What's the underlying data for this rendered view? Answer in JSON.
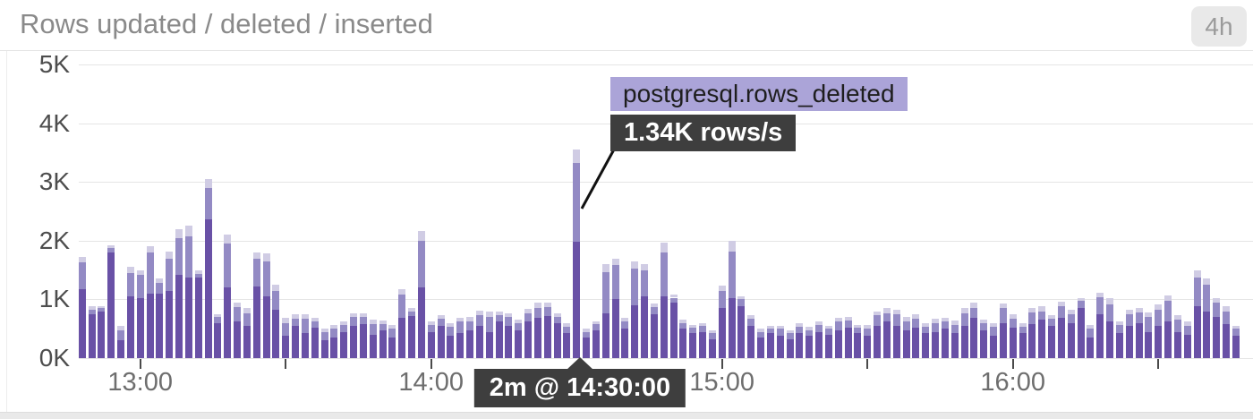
{
  "header": {
    "title": "Rows updated / deleted / inserted",
    "time_range_label": "4h"
  },
  "tooltip": {
    "metric": "postgresql.rows_deleted",
    "value": "1.34K rows/s"
  },
  "time_marker": {
    "label": "2m @ 14:30:00"
  },
  "colors": {
    "bar_updated": "#6951a6",
    "bar_deleted": "#938ac4",
    "bar_inserted": "#d0cce4",
    "tooltip_metric_bg": "#aba4d8",
    "tooltip_value_bg": "#3e3e3e",
    "grid": "#e5e5e5",
    "title_text": "#8a8a8a",
    "axis_text": "#4d4d4d"
  },
  "chart_data": {
    "type": "bar",
    "stacked": true,
    "title": "Rows updated / deleted / inserted",
    "units": "K rows/s",
    "ylim": [
      0,
      5
    ],
    "y_ticks": [
      {
        "value": 0,
        "label": "0K"
      },
      {
        "value": 1,
        "label": "1K"
      },
      {
        "value": 2,
        "label": "2K"
      },
      {
        "value": 3,
        "label": "3K"
      },
      {
        "value": 4,
        "label": "4K"
      },
      {
        "value": 5,
        "label": "5K"
      }
    ],
    "x_ticks": [
      {
        "minutes_from_13": 0,
        "label": "13:00"
      },
      {
        "minutes_from_13": 30,
        "label": ""
      },
      {
        "minutes_from_13": 60,
        "label": "14:00"
      },
      {
        "minutes_from_13": 120,
        "label": "15:00"
      },
      {
        "minutes_from_13": 150,
        "label": ""
      },
      {
        "minutes_from_13": 180,
        "label": "16:00"
      },
      {
        "minutes_from_13": 210,
        "label": ""
      }
    ],
    "interval": "2m",
    "start_time": "12:48",
    "end_time": "16:46",
    "hovered_point": {
      "index": 51,
      "time": "14:30:00",
      "series": "deleted",
      "value_label": "1.34K rows/s"
    },
    "series": [
      {
        "name": "updated",
        "values": [
          1.18,
          0.75,
          0.8,
          1.8,
          0.3,
          1.05,
          1.02,
          1.1,
          1.1,
          1.15,
          1.42,
          1.37,
          1.37,
          2.37,
          0.6,
          1.2,
          0.62,
          0.55,
          1.22,
          1.05,
          0.82,
          0.38,
          0.55,
          0.42,
          0.52,
          0.3,
          0.35,
          0.45,
          0.55,
          0.58,
          0.4,
          0.48,
          0.35,
          0.68,
          0.72,
          1.2,
          0.45,
          0.55,
          0.38,
          0.42,
          0.48,
          0.55,
          0.45,
          0.62,
          0.55,
          0.48,
          0.62,
          0.68,
          0.72,
          0.6,
          0.42,
          1.98,
          0.35,
          0.48,
          0.76,
          1.0,
          0.5,
          0.9,
          1.05,
          0.75,
          1.05,
          0.95,
          0.5,
          0.42,
          0.45,
          0.32,
          0.85,
          1.02,
          0.88,
          0.55,
          0.35,
          0.42,
          0.38,
          0.32,
          0.42,
          0.38,
          0.45,
          0.4,
          0.48,
          0.52,
          0.42,
          0.38,
          0.55,
          0.62,
          0.55,
          0.48,
          0.52,
          0.42,
          0.45,
          0.5,
          0.42,
          0.55,
          0.68,
          0.48,
          0.38,
          0.6,
          0.52,
          0.42,
          0.58,
          0.65,
          0.55,
          0.68,
          0.6,
          0.85,
          0.35,
          0.75,
          0.62,
          0.42,
          0.55,
          0.6,
          0.45,
          0.55,
          0.62,
          0.45,
          0.4,
          0.88,
          0.8,
          0.7,
          0.58,
          0.38
        ]
      },
      {
        "name": "deleted",
        "values": [
          0.45,
          0.08,
          0.05,
          0.07,
          0.18,
          0.4,
          0.4,
          0.7,
          0.18,
          0.55,
          0.63,
          0.7,
          0.07,
          0.53,
          0.1,
          0.75,
          0.25,
          0.22,
          0.48,
          0.6,
          0.33,
          0.22,
          0.12,
          0.25,
          0.1,
          0.15,
          0.15,
          0.12,
          0.15,
          0.12,
          0.18,
          0.1,
          0.15,
          0.4,
          0.08,
          0.8,
          0.12,
          0.12,
          0.15,
          0.2,
          0.15,
          0.18,
          0.25,
          0.12,
          0.15,
          0.12,
          0.15,
          0.18,
          0.15,
          0.1,
          0.12,
          1.34,
          0.1,
          0.1,
          0.7,
          0.58,
          0.12,
          0.62,
          0.45,
          0.12,
          0.75,
          0.08,
          0.1,
          0.1,
          0.1,
          0.1,
          0.3,
          0.8,
          0.12,
          0.12,
          0.1,
          0.08,
          0.12,
          0.1,
          0.12,
          0.1,
          0.12,
          0.1,
          0.15,
          0.12,
          0.1,
          0.12,
          0.18,
          0.15,
          0.2,
          0.15,
          0.15,
          0.12,
          0.15,
          0.12,
          0.15,
          0.22,
          0.18,
          0.12,
          0.15,
          0.25,
          0.15,
          0.12,
          0.2,
          0.15,
          0.12,
          0.2,
          0.15,
          0.12,
          0.15,
          0.28,
          0.3,
          0.15,
          0.2,
          0.18,
          0.25,
          0.28,
          0.35,
          0.2,
          0.15,
          0.5,
          0.45,
          0.25,
          0.22,
          0.12
        ]
      },
      {
        "name": "inserted",
        "values": [
          0.1,
          0.05,
          0.03,
          0.05,
          0.07,
          0.1,
          0.08,
          0.1,
          0.07,
          0.12,
          0.15,
          0.18,
          0.05,
          0.15,
          0.05,
          0.15,
          0.08,
          0.08,
          0.1,
          0.13,
          0.1,
          0.08,
          0.08,
          0.08,
          0.06,
          0.06,
          0.06,
          0.06,
          0.07,
          0.07,
          0.07,
          0.06,
          0.06,
          0.1,
          0.05,
          0.17,
          0.06,
          0.06,
          0.06,
          0.07,
          0.07,
          0.08,
          0.09,
          0.06,
          0.07,
          0.06,
          0.07,
          0.08,
          0.08,
          0.06,
          0.06,
          0.23,
          0.05,
          0.05,
          0.14,
          0.12,
          0.06,
          0.13,
          0.1,
          0.06,
          0.17,
          0.05,
          0.05,
          0.05,
          0.05,
          0.05,
          0.08,
          0.18,
          0.06,
          0.06,
          0.05,
          0.05,
          0.05,
          0.05,
          0.06,
          0.05,
          0.06,
          0.05,
          0.06,
          0.06,
          0.05,
          0.06,
          0.07,
          0.08,
          0.08,
          0.07,
          0.07,
          0.06,
          0.07,
          0.06,
          0.07,
          0.08,
          0.08,
          0.06,
          0.06,
          0.08,
          0.07,
          0.06,
          0.08,
          0.08,
          0.06,
          0.08,
          0.07,
          0.06,
          0.06,
          0.09,
          0.1,
          0.06,
          0.08,
          0.08,
          0.08,
          0.09,
          0.1,
          0.08,
          0.07,
          0.12,
          0.1,
          0.08,
          0.08,
          0.05
        ]
      }
    ]
  }
}
